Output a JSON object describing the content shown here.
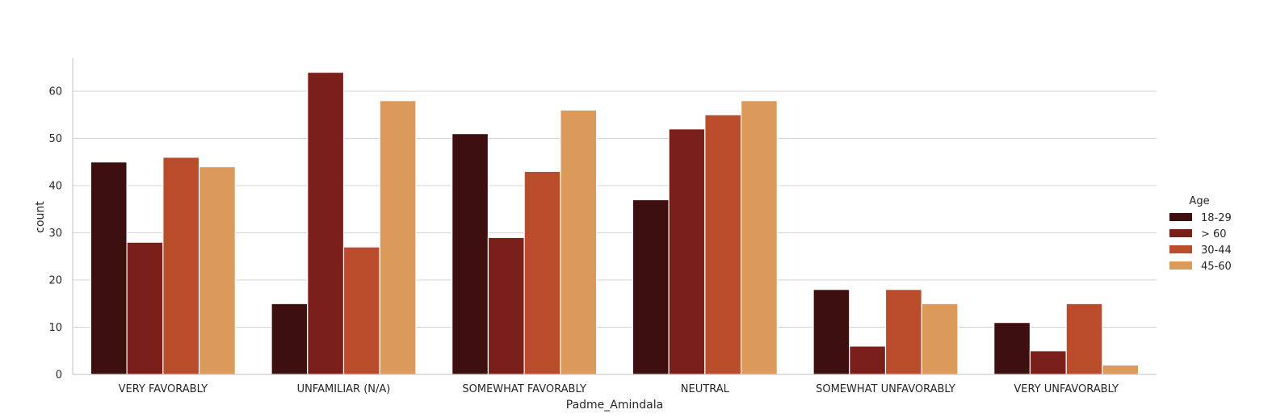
{
  "chart_data": {
    "type": "bar",
    "title": "",
    "xlabel": "Padme_Amindala",
    "ylabel": "count",
    "ylim": [
      0,
      67
    ],
    "yticks": [
      0,
      10,
      20,
      30,
      40,
      50,
      60
    ],
    "grid": true,
    "legend_position": "right",
    "legend_title": "Age",
    "categories": [
      "VERY FAVORABLY",
      "UNFAMILIAR (N/A)",
      "SOMEWHAT FAVORABLY",
      "NEUTRAL",
      "SOMEWHAT UNFAVORABLY",
      "VERY UNFAVORABLY"
    ],
    "series": [
      {
        "name": "18-29",
        "color": "#3d0f0e",
        "values": [
          45,
          15,
          51,
          37,
          18,
          11
        ]
      },
      {
        "name": "> 60",
        "color": "#7b1f1b",
        "values": [
          28,
          64,
          29,
          52,
          6,
          5
        ]
      },
      {
        "name": "30-44",
        "color": "#b94c2b",
        "values": [
          46,
          27,
          43,
          55,
          18,
          15
        ]
      },
      {
        "name": "45-60",
        "color": "#db9a5a",
        "values": [
          44,
          58,
          56,
          58,
          15,
          2
        ]
      }
    ]
  }
}
